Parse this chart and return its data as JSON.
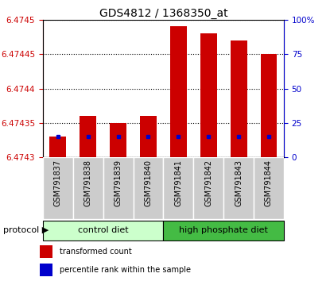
{
  "title": "GDS4812 / 1368350_at",
  "samples": [
    "GSM791837",
    "GSM791838",
    "GSM791839",
    "GSM791840",
    "GSM791841",
    "GSM791842",
    "GSM791843",
    "GSM791844"
  ],
  "red_values": [
    6.47433,
    6.47436,
    6.47435,
    6.47436,
    6.47449,
    6.47448,
    6.47447,
    6.47445
  ],
  "blue_values": [
    6.47433,
    6.47433,
    6.47433,
    6.47433,
    6.47433,
    6.47433,
    6.47433,
    6.47433
  ],
  "ymin": 6.4743,
  "ymax": 6.4745,
  "y2min": 0,
  "y2max": 100,
  "yticks": [
    6.4743,
    6.47435,
    6.4744,
    6.47445,
    6.4745
  ],
  "ytick_labels": [
    "6.4743",
    "6.47435",
    "6.4744",
    "6.47445",
    "6.4745"
  ],
  "y2ticks": [
    0,
    25,
    50,
    75,
    100
  ],
  "y2tick_labels": [
    "0",
    "25",
    "50",
    "75",
    "100%"
  ],
  "bar_base": 6.4743,
  "bar_width": 0.55,
  "control_label": "control diet",
  "high_phosphate_label": "high phosphate diet",
  "protocol_label": "protocol",
  "legend_red": "transformed count",
  "legend_blue": "percentile rank within the sample",
  "red_color": "#cc0000",
  "blue_color": "#0000cc",
  "light_green": "#ccffcc",
  "dark_green": "#44bb44",
  "gray_bg": "#cccccc",
  "white": "#ffffff",
  "title_fontsize": 10,
  "tick_fontsize": 7.5,
  "label_fontsize": 8,
  "small_fontsize": 7
}
